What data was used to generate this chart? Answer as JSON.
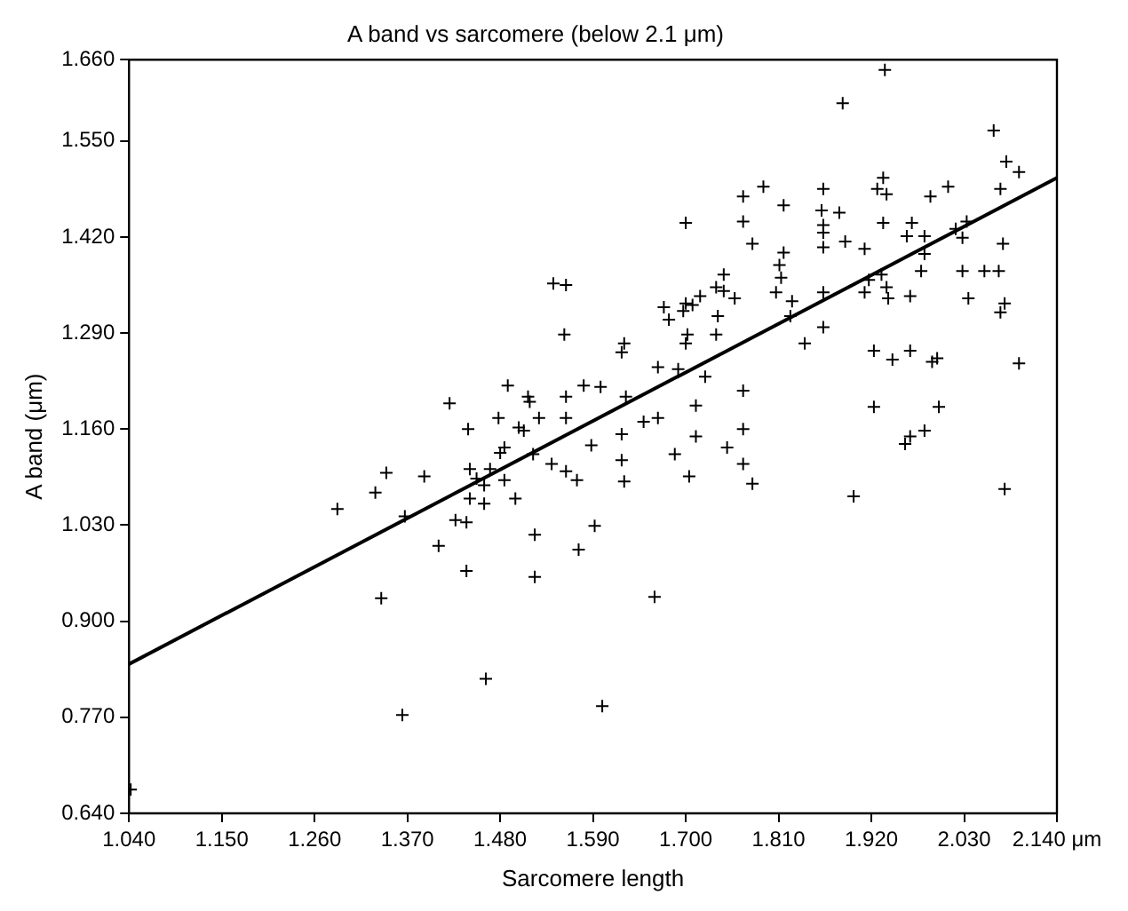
{
  "chart_data": {
    "type": "scatter",
    "title": "A band vs sarcomere (below 2.1 μm)",
    "xlabel": "Sarcomere length",
    "ylabel": "A band (μm)",
    "xlim": [
      1.04,
      2.14
    ],
    "xticks": [
      {
        "value": 1.04,
        "label": "1.040"
      },
      {
        "value": 1.15,
        "label": "1.150"
      },
      {
        "value": 1.26,
        "label": "1.260"
      },
      {
        "value": 1.37,
        "label": "1.370"
      },
      {
        "value": 1.48,
        "label": "1.480"
      },
      {
        "value": 1.59,
        "label": "1.590"
      },
      {
        "value": 1.7,
        "label": "1.700"
      },
      {
        "value": 1.81,
        "label": "1.810"
      },
      {
        "value": 1.92,
        "label": "1.920"
      },
      {
        "value": 2.03,
        "label": "2.030"
      },
      {
        "value": 2.14,
        "label": "2.140 μm"
      }
    ],
    "ylim": [
      0.64,
      1.66
    ],
    "yticks": [
      {
        "value": 0.64,
        "label": "0.640"
      },
      {
        "value": 0.77,
        "label": "0.770"
      },
      {
        "value": 0.9,
        "label": "0.900"
      },
      {
        "value": 1.03,
        "label": "1.030"
      },
      {
        "value": 1.16,
        "label": "1.160"
      },
      {
        "value": 1.29,
        "label": "1.290"
      },
      {
        "value": 1.42,
        "label": "1.420"
      },
      {
        "value": 1.55,
        "label": "1.550"
      },
      {
        "value": 1.66,
        "label": "1.660"
      }
    ],
    "grid": false,
    "legend": false,
    "series": [
      {
        "type": "scatter",
        "color": "#000000",
        "marker": "cross",
        "x": [
          1.792,
          1.768,
          1.816,
          1.7,
          1.768,
          1.779,
          1.816,
          1.811,
          1.813,
          1.807,
          1.826,
          1.824,
          1.841,
          1.543,
          1.558,
          1.745,
          1.736,
          1.745,
          1.758,
          1.717,
          1.708,
          1.7,
          1.697,
          1.674,
          1.68,
          1.738,
          1.702,
          1.7,
          1.736,
          1.556,
          1.627,
          1.624,
          1.667,
          1.691,
          1.723,
          1.768,
          1.579,
          1.599,
          1.629,
          1.558,
          1.489,
          1.513,
          1.515,
          1.42,
          1.712,
          1.478,
          1.526,
          1.558,
          1.65,
          1.667,
          1.442,
          1.502,
          1.508,
          1.624,
          1.768,
          1.712,
          1.485,
          1.48,
          1.588,
          1.749,
          1.687,
          1.519,
          1.624,
          1.541,
          1.768,
          1.444,
          1.468,
          1.558,
          1.452,
          1.571,
          1.485,
          1.461,
          1.627,
          1.704,
          1.779,
          1.498,
          1.444,
          1.461,
          1.427,
          1.44,
          1.521,
          1.592,
          1.573,
          1.44,
          1.521,
          1.663,
          1.463,
          1.601,
          1.345,
          1.39,
          1.332,
          1.287,
          1.367,
          1.407,
          1.339,
          1.364,
          1.042,
          1.936,
          1.886,
          2.065,
          2.08,
          2.095,
          1.934,
          1.927,
          1.938,
          1.863,
          1.99,
          2.011,
          2.073,
          1.861,
          1.882,
          1.863,
          1.863,
          1.934,
          1.968,
          1.962,
          1.983,
          2.02,
          2.033,
          2.028,
          1.889,
          1.912,
          1.863,
          1.983,
          2.076,
          1.979,
          2.028,
          2.054,
          2.071,
          1.932,
          1.917,
          1.863,
          1.912,
          1.938,
          1.94,
          1.966,
          2.035,
          2.078,
          2.073,
          1.863,
          1.923,
          1.945,
          1.966,
          1.992,
          1.998,
          2.095,
          2.0,
          1.923,
          1.966,
          1.96,
          1.983,
          2.078,
          1.899
        ],
        "values": [
          1.488,
          1.475,
          1.463,
          1.439,
          1.441,
          1.411,
          1.399,
          1.382,
          1.365,
          1.345,
          1.333,
          1.313,
          1.276,
          1.357,
          1.355,
          1.369,
          1.352,
          1.347,
          1.337,
          1.34,
          1.328,
          1.33,
          1.32,
          1.325,
          1.308,
          1.313,
          1.288,
          1.276,
          1.288,
          1.288,
          1.276,
          1.264,
          1.244,
          1.241,
          1.231,
          1.212,
          1.219,
          1.217,
          1.204,
          1.204,
          1.219,
          1.204,
          1.197,
          1.195,
          1.192,
          1.175,
          1.175,
          1.175,
          1.17,
          1.175,
          1.16,
          1.162,
          1.158,
          1.153,
          1.16,
          1.15,
          1.135,
          1.128,
          1.138,
          1.135,
          1.126,
          1.126,
          1.118,
          1.113,
          1.113,
          1.106,
          1.106,
          1.103,
          1.093,
          1.091,
          1.091,
          1.084,
          1.089,
          1.096,
          1.086,
          1.066,
          1.066,
          1.059,
          1.037,
          1.034,
          1.017,
          1.029,
          0.997,
          0.968,
          0.96,
          0.933,
          0.822,
          0.785,
          1.101,
          1.096,
          1.074,
          1.052,
          1.042,
          1.002,
          0.931,
          0.773,
          0.672,
          1.646,
          1.601,
          1.564,
          1.522,
          1.508,
          1.5,
          1.485,
          1.478,
          1.485,
          1.475,
          1.488,
          1.485,
          1.456,
          1.453,
          1.436,
          1.426,
          1.439,
          1.439,
          1.421,
          1.421,
          1.431,
          1.441,
          1.419,
          1.414,
          1.404,
          1.406,
          1.397,
          1.411,
          1.374,
          1.374,
          1.374,
          1.374,
          1.369,
          1.362,
          1.345,
          1.345,
          1.352,
          1.337,
          1.34,
          1.337,
          1.33,
          1.318,
          1.298,
          1.266,
          1.254,
          1.266,
          1.251,
          1.256,
          1.249,
          1.19,
          1.19,
          1.15,
          1.14,
          1.158,
          1.079,
          1.069
        ]
      },
      {
        "type": "line",
        "color": "#000000",
        "marker": "none",
        "x": [
          1.04,
          2.14
        ],
        "values": [
          0.842,
          1.5
        ]
      }
    ]
  }
}
